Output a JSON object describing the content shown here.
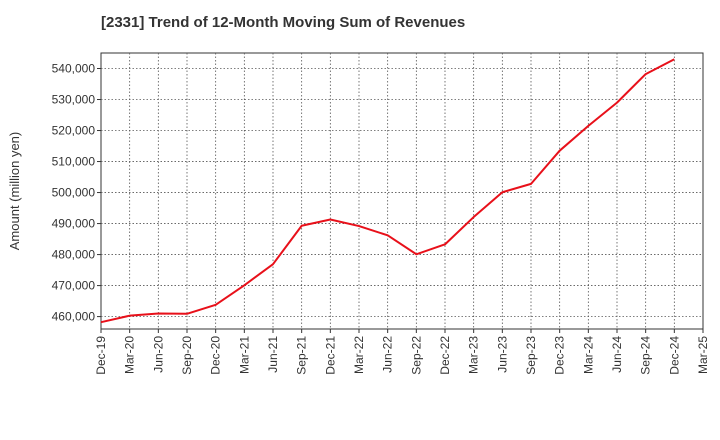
{
  "chart_data": {
    "type": "line",
    "title": "[2331]  Trend of 12-Month Moving Sum of Revenues",
    "xlabel": "",
    "ylabel": "Amount (million yen)",
    "ylim": [
      456000,
      545000
    ],
    "y_ticks": [
      460000,
      470000,
      480000,
      490000,
      500000,
      510000,
      520000,
      530000,
      540000
    ],
    "y_tick_labels": [
      "460,000",
      "470,000",
      "480,000",
      "490,000",
      "500,000",
      "510,000",
      "520,000",
      "530,000",
      "540,000"
    ],
    "x_tick_labels": [
      "Dec-19",
      "Mar-20",
      "Jun-20",
      "Sep-20",
      "Dec-20",
      "Mar-21",
      "Jun-21",
      "Sep-21",
      "Dec-21",
      "Mar-22",
      "Jun-22",
      "Sep-22",
      "Dec-22",
      "Mar-23",
      "Jun-23",
      "Sep-23",
      "Dec-23",
      "Mar-24",
      "Jun-24",
      "Sep-24",
      "Dec-24",
      "Mar-25"
    ],
    "grid": true,
    "series": [
      {
        "color": "#e8101a",
        "x": [
          "Dec-19",
          "Mar-20",
          "Jun-20",
          "Sep-20",
          "Dec-20",
          "Mar-21",
          "Jun-21",
          "Sep-21",
          "Dec-21",
          "Mar-22",
          "Jun-22",
          "Sep-22",
          "Dec-22",
          "Mar-23",
          "Jun-23",
          "Sep-23",
          "Dec-23",
          "Mar-24",
          "Jun-24",
          "Sep-24",
          "Dec-24"
        ],
        "values": [
          458200,
          460300,
          461000,
          460900,
          463800,
          470100,
          476900,
          489300,
          491300,
          489200,
          486200,
          480100,
          483300,
          492100,
          500100,
          502800,
          513500,
          521500,
          529000,
          538200,
          543000
        ]
      }
    ]
  }
}
